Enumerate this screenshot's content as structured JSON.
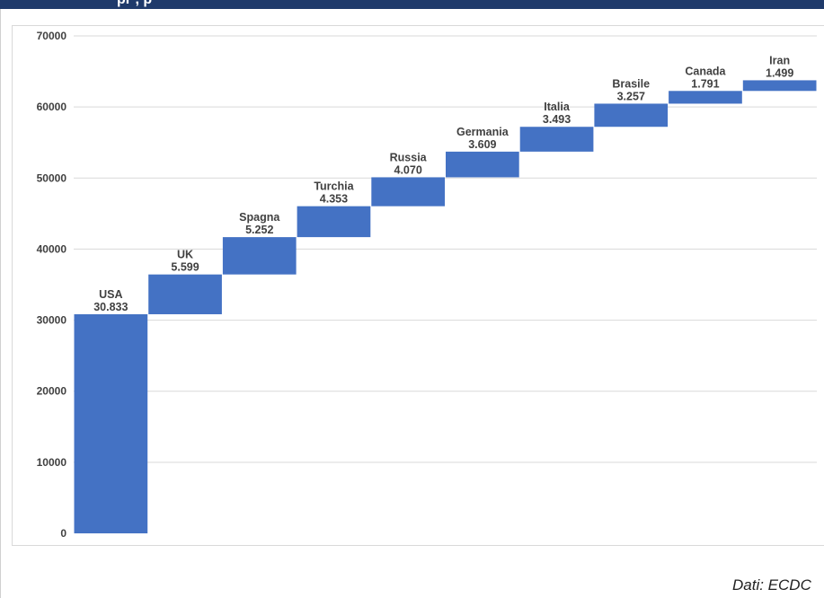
{
  "header": {
    "title_fragment": "pr                                    , p"
  },
  "source": {
    "text": "Dati: ECDC"
  },
  "colors": {
    "banner": "#1f3a6b",
    "bar": "#4472c4",
    "grid": "#d9d9d9",
    "text": "#404040"
  },
  "chart_data": {
    "type": "bar",
    "subtype": "waterfall",
    "categories": [
      "USA",
      "UK",
      "Spagna",
      "Turchia",
      "Russia",
      "Germania",
      "Italia",
      "Brasile",
      "Canada",
      "Iran"
    ],
    "value_labels": [
      "30.833",
      "5.599",
      "5.252",
      "4.353",
      "4.070",
      "3.609",
      "3.493",
      "3.257",
      "1.791",
      "1.499"
    ],
    "values": [
      30833,
      5599,
      5252,
      4353,
      4070,
      3609,
      3493,
      3257,
      1791,
      1499
    ],
    "ylim": [
      0,
      70000
    ],
    "yticks": [
      "0",
      "10000",
      "20000",
      "30000",
      "40000",
      "50000",
      "60000",
      "70000"
    ],
    "grid": true,
    "legend": "none"
  }
}
